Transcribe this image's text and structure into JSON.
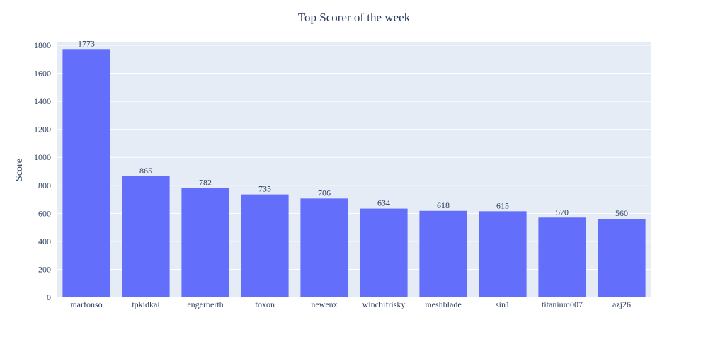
{
  "chart_data": {
    "type": "bar",
    "title": "Top Scorer of the week",
    "xlabel": "",
    "ylabel": "Score",
    "categories": [
      "marfonso",
      "tpkidkai",
      "engerberth",
      "foxon",
      "newenx",
      "winchifrisky",
      "meshblade",
      "sin1",
      "titanium007",
      "azj26"
    ],
    "values": [
      1773,
      865,
      782,
      735,
      706,
      634,
      618,
      615,
      570,
      560
    ],
    "ylim": [
      0,
      1820
    ],
    "yticks": [
      0,
      200,
      400,
      600,
      800,
      1000,
      1200,
      1400,
      1600,
      1800
    ],
    "grid": true,
    "legend": "none",
    "bar_color": "#636efa",
    "plot_bg": "#e5ecf6",
    "grid_color": "#ffffff",
    "text_color": "#2a3f5f"
  }
}
